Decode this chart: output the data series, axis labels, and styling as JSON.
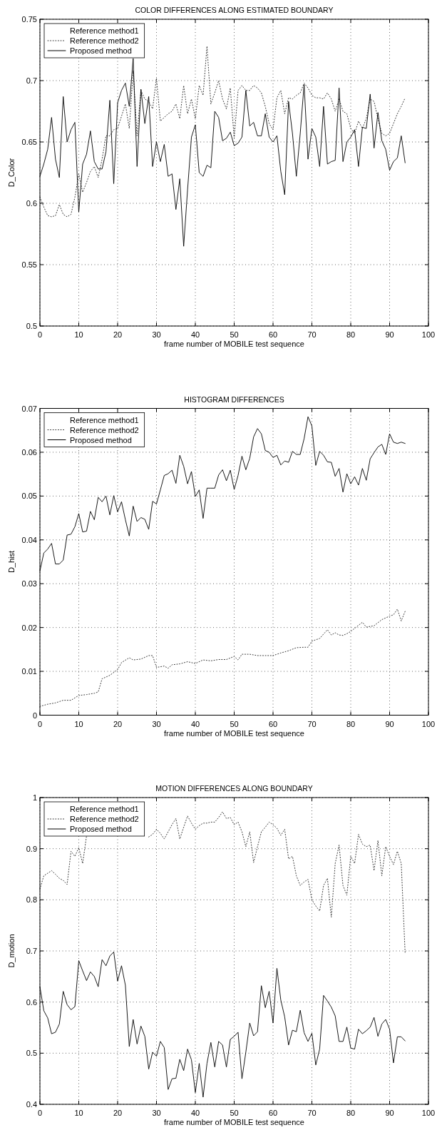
{
  "chart_data": [
    {
      "type": "line",
      "title": "COLOR DIFFERENCES ALONG ESTIMATED BOUNDARY",
      "xlabel": "frame number of MOBILE test sequence",
      "ylabel": "D_Color",
      "xlim": [
        0,
        100
      ],
      "xticks": [
        0,
        10,
        20,
        30,
        40,
        50,
        60,
        70,
        80,
        90,
        100
      ],
      "ylim": [
        0.5,
        0.75
      ],
      "yticks": [
        0.5,
        0.55,
        0.6,
        0.65,
        0.7,
        0.75
      ],
      "grid": true,
      "legend": "top left",
      "series": [
        {
          "name": "Reference method1"
        },
        {
          "name": "Reference method2",
          "color": "#333333",
          "line_style": "dotted",
          "x": [
            0,
            1,
            2,
            3,
            4,
            5,
            6,
            7,
            8,
            9,
            10,
            11,
            12,
            13,
            14,
            15,
            16,
            17,
            18,
            19,
            20,
            21,
            22,
            23,
            24,
            25,
            26,
            27,
            28,
            29,
            30,
            31,
            32,
            33,
            34,
            35,
            36,
            37,
            38,
            39,
            40,
            41,
            42,
            43,
            44,
            45,
            46,
            47,
            48,
            49,
            50,
            51,
            52,
            53,
            54,
            55,
            56,
            57,
            58,
            59,
            60,
            61,
            62,
            63,
            64,
            65,
            66,
            67,
            68,
            69,
            70,
            71,
            72,
            73,
            74,
            75,
            76,
            77,
            78,
            79,
            80,
            81,
            82,
            83,
            84,
            85,
            86,
            87,
            88,
            89,
            90,
            91,
            92,
            93,
            94
          ],
          "values": [
            0.605,
            0.597,
            0.59,
            0.589,
            0.59,
            0.599,
            0.591,
            0.589,
            0.591,
            0.605,
            0.624,
            0.609,
            0.617,
            0.626,
            0.63,
            0.621,
            0.636,
            0.655,
            0.655,
            0.66,
            0.661,
            0.671,
            0.681,
            0.661,
            0.708,
            0.655,
            0.692,
            0.685,
            0.683,
            0.677,
            0.702,
            0.667,
            0.67,
            0.673,
            0.675,
            0.681,
            0.669,
            0.696,
            0.673,
            0.685,
            0.669,
            0.696,
            0.688,
            0.728,
            0.681,
            0.69,
            0.7,
            0.685,
            0.677,
            0.694,
            0.653,
            0.692,
            0.696,
            0.692,
            0.692,
            0.696,
            0.694,
            0.69,
            0.679,
            0.665,
            0.66,
            0.686,
            0.692,
            0.673,
            0.686,
            0.685,
            0.688,
            0.69,
            0.698,
            0.694,
            0.688,
            0.686,
            0.686,
            0.685,
            0.69,
            0.685,
            0.675,
            0.685,
            0.675,
            0.673,
            0.661,
            0.657,
            0.667,
            0.661,
            0.669,
            0.685,
            0.683,
            0.669,
            0.657,
            0.655,
            0.657,
            0.665,
            0.673,
            0.679,
            0.686
          ]
        },
        {
          "name": "Proposed method",
          "color": "#000000",
          "line_style": "solid",
          "x": [
            0,
            1,
            2,
            3,
            4,
            5,
            6,
            7,
            8,
            9,
            10,
            11,
            12,
            13,
            14,
            15,
            16,
            17,
            18,
            19,
            20,
            21,
            22,
            23,
            24,
            25,
            26,
            27,
            28,
            29,
            30,
            31,
            32,
            33,
            34,
            35,
            36,
            37,
            38,
            39,
            40,
            41,
            42,
            43,
            44,
            45,
            46,
            47,
            48,
            49,
            50,
            51,
            52,
            53,
            54,
            55,
            56,
            57,
            58,
            59,
            60,
            61,
            62,
            63,
            64,
            65,
            66,
            67,
            68,
            69,
            70,
            71,
            72,
            73,
            74,
            75,
            76,
            77,
            78,
            79,
            80,
            81,
            82,
            83,
            84,
            85,
            86,
            87,
            88,
            89,
            90,
            91,
            92,
            93,
            94
          ],
          "values": [
            0.622,
            0.632,
            0.644,
            0.67,
            0.636,
            0.621,
            0.687,
            0.65,
            0.66,
            0.666,
            0.593,
            0.632,
            0.64,
            0.659,
            0.634,
            0.628,
            0.628,
            0.642,
            0.684,
            0.616,
            0.682,
            0.692,
            0.698,
            0.679,
            0.718,
            0.63,
            0.693,
            0.665,
            0.687,
            0.63,
            0.65,
            0.634,
            0.648,
            0.622,
            0.624,
            0.595,
            0.62,
            0.565,
            0.611,
            0.654,
            0.664,
            0.625,
            0.622,
            0.631,
            0.629,
            0.675,
            0.67,
            0.651,
            0.653,
            0.658,
            0.647,
            0.649,
            0.654,
            0.692,
            0.663,
            0.666,
            0.655,
            0.655,
            0.673,
            0.654,
            0.65,
            0.655,
            0.626,
            0.607,
            0.683,
            0.657,
            0.622,
            0.657,
            0.697,
            0.636,
            0.661,
            0.654,
            0.63,
            0.679,
            0.632,
            0.634,
            0.635,
            0.694,
            0.634,
            0.65,
            0.654,
            0.66,
            0.63,
            0.662,
            0.661,
            0.689,
            0.645,
            0.674,
            0.651,
            0.644,
            0.627,
            0.634,
            0.637,
            0.655,
            0.633
          ]
        }
      ]
    },
    {
      "type": "line",
      "title": "HISTOGRAM DIFFERENCES",
      "xlabel": "frame number of MOBILE test sequence",
      "ylabel": "D_hist",
      "xlim": [
        0,
        100
      ],
      "xticks": [
        0,
        10,
        20,
        30,
        40,
        50,
        60,
        70,
        80,
        90,
        100
      ],
      "ylim": [
        0,
        0.07
      ],
      "yticks": [
        0,
        0.01,
        0.02,
        0.03,
        0.04,
        0.05,
        0.06,
        0.07
      ],
      "grid": true,
      "legend": "top left",
      "series": [
        {
          "name": "Reference method1"
        },
        {
          "name": "Reference method2",
          "color": "#333333",
          "line_style": "dotted",
          "x": [
            0,
            2,
            4,
            6,
            8,
            10,
            12,
            14,
            15,
            16,
            18,
            20,
            21,
            23,
            24,
            26,
            28,
            29,
            30,
            32,
            33,
            34,
            36,
            38,
            40,
            42,
            44,
            46,
            48,
            50,
            51,
            52,
            54,
            56,
            58,
            60,
            62,
            64,
            66,
            68,
            69,
            70,
            72,
            74,
            75,
            76,
            77,
            78,
            79,
            80,
            82,
            83,
            84,
            86,
            88,
            90,
            91,
            92,
            93,
            94
          ],
          "values": [
            0.002,
            0.0025,
            0.0028,
            0.0034,
            0.0034,
            0.0045,
            0.0047,
            0.005,
            0.0053,
            0.0083,
            0.0091,
            0.0104,
            0.012,
            0.0131,
            0.0126,
            0.0128,
            0.0136,
            0.0136,
            0.0109,
            0.0112,
            0.0107,
            0.0115,
            0.0117,
            0.0122,
            0.0118,
            0.0126,
            0.0124,
            0.0127,
            0.0127,
            0.0134,
            0.0126,
            0.0139,
            0.0139,
            0.0136,
            0.0136,
            0.0136,
            0.0142,
            0.0147,
            0.0154,
            0.0155,
            0.0155,
            0.0169,
            0.0175,
            0.0195,
            0.0183,
            0.0188,
            0.0183,
            0.0182,
            0.0186,
            0.0191,
            0.0205,
            0.0212,
            0.0201,
            0.0204,
            0.0218,
            0.0226,
            0.0229,
            0.0242,
            0.0215,
            0.0237
          ]
        },
        {
          "name": "Proposed method",
          "color": "#000000",
          "line_style": "solid",
          "x": [
            0,
            1,
            2,
            3,
            4,
            5,
            6,
            7,
            8,
            9,
            10,
            11,
            12,
            13,
            14,
            15,
            16,
            17,
            18,
            19,
            20,
            21,
            22,
            23,
            24,
            25,
            26,
            27,
            28,
            29,
            30,
            31,
            32,
            33,
            34,
            35,
            36,
            37,
            38,
            39,
            40,
            41,
            42,
            43,
            44,
            45,
            46,
            47,
            48,
            49,
            50,
            51,
            52,
            53,
            54,
            55,
            56,
            57,
            58,
            59,
            60,
            61,
            62,
            63,
            64,
            65,
            66,
            67,
            68,
            69,
            70,
            71,
            72,
            73,
            74,
            75,
            76,
            77,
            78,
            79,
            80,
            81,
            82,
            83,
            84,
            85,
            86,
            87,
            88,
            89,
            90,
            91,
            92,
            93,
            94
          ],
          "values": [
            0.0329,
            0.037,
            0.0379,
            0.0392,
            0.0345,
            0.0345,
            0.0354,
            0.0411,
            0.0413,
            0.043,
            0.046,
            0.0418,
            0.042,
            0.0465,
            0.0446,
            0.0497,
            0.0487,
            0.05,
            0.0457,
            0.0501,
            0.0464,
            0.0487,
            0.0446,
            0.0409,
            0.0477,
            0.0442,
            0.0451,
            0.0447,
            0.0424,
            0.0488,
            0.0482,
            0.0514,
            0.0547,
            0.0551,
            0.0559,
            0.0529,
            0.0593,
            0.0568,
            0.0528,
            0.0556,
            0.0499,
            0.0514,
            0.0449,
            0.0518,
            0.0518,
            0.0518,
            0.0548,
            0.056,
            0.0535,
            0.0559,
            0.0515,
            0.0547,
            0.0591,
            0.056,
            0.0586,
            0.0635,
            0.0654,
            0.0642,
            0.0604,
            0.06,
            0.0588,
            0.0593,
            0.0571,
            0.058,
            0.0577,
            0.0602,
            0.0595,
            0.0595,
            0.0631,
            0.0681,
            0.066,
            0.057,
            0.0602,
            0.0593,
            0.0578,
            0.0577,
            0.0545,
            0.0563,
            0.0509,
            0.0551,
            0.0528,
            0.0544,
            0.0525,
            0.0563,
            0.0536,
            0.0585,
            0.0599,
            0.0612,
            0.0618,
            0.0595,
            0.0642,
            0.0623,
            0.062,
            0.0623,
            0.062
          ]
        }
      ]
    },
    {
      "type": "line",
      "title": "MOTION DIFFERENCES ALONG BOUNDARY",
      "xlabel": "frame number of MOBILE test sequence",
      "ylabel": "D_motion",
      "xlim": [
        0,
        100
      ],
      "xticks": [
        0,
        10,
        20,
        30,
        40,
        50,
        60,
        70,
        80,
        90,
        100
      ],
      "ylim": [
        0.4,
        1
      ],
      "yticks": [
        0.4,
        0.5,
        0.6,
        0.7,
        0.8,
        0.9,
        1
      ],
      "grid": true,
      "legend": "top left",
      "series": [
        {
          "name": "Reference method1"
        },
        {
          "name": "Reference method2",
          "color": "#333333",
          "line_style": "dotted",
          "x": [
            0,
            1,
            2,
            3,
            4,
            5,
            6,
            7,
            8,
            9,
            10,
            11,
            12,
            13,
            14,
            15,
            16,
            17,
            18,
            19,
            20,
            21,
            22,
            23,
            24,
            25,
            26,
            27,
            28,
            29,
            30,
            31,
            32,
            33,
            34,
            35,
            36,
            37,
            38,
            39,
            40,
            41,
            42,
            43,
            44,
            45,
            46,
            47,
            48,
            49,
            50,
            51,
            52,
            53,
            54,
            55,
            56,
            57,
            58,
            59,
            60,
            61,
            62,
            63,
            64,
            65,
            66,
            67,
            68,
            69,
            70,
            71,
            72,
            73,
            74,
            75,
            76,
            77,
            78,
            79,
            80,
            81,
            82,
            83,
            84,
            85,
            86,
            87,
            88,
            89,
            90,
            91,
            92,
            93,
            94
          ],
          "values": [
            0.821,
            0.847,
            0.852,
            0.857,
            0.85,
            0.842,
            0.838,
            0.83,
            0.895,
            0.885,
            0.902,
            0.871,
            0.925,
            null,
            null,
            null,
            null,
            null,
            null,
            null,
            null,
            null,
            null,
            null,
            null,
            null,
            null,
            null,
            0.923,
            0.928,
            0.938,
            0.93,
            0.919,
            0.933,
            0.947,
            0.959,
            0.919,
            0.942,
            0.964,
            0.95,
            0.938,
            0.945,
            0.95,
            0.95,
            0.952,
            0.952,
            0.961,
            0.972,
            0.959,
            0.961,
            0.947,
            0.952,
            0.933,
            0.904,
            0.933,
            0.873,
            0.904,
            0.933,
            0.942,
            0.952,
            0.947,
            0.94,
            0.926,
            0.938,
            0.88,
            0.885,
            0.847,
            0.828,
            0.835,
            0.84,
            0.8,
            0.788,
            0.778,
            0.828,
            0.842,
            0.766,
            0.871,
            0.907,
            0.828,
            0.809,
            0.885,
            0.871,
            0.928,
            0.909,
            0.904,
            0.907,
            0.857,
            0.916,
            0.847,
            0.904,
            0.885,
            0.869,
            0.895,
            0.871,
            0.695
          ]
        },
        {
          "name": "Proposed method",
          "color": "#000000",
          "line_style": "solid",
          "x": [
            0,
            1,
            2,
            3,
            4,
            5,
            6,
            7,
            8,
            9,
            10,
            11,
            12,
            13,
            14,
            15,
            16,
            17,
            18,
            19,
            20,
            21,
            22,
            23,
            24,
            25,
            26,
            27,
            28,
            29,
            30,
            31,
            32,
            33,
            34,
            35,
            36,
            37,
            38,
            39,
            40,
            41,
            42,
            43,
            44,
            45,
            46,
            47,
            48,
            49,
            50,
            51,
            52,
            53,
            54,
            55,
            56,
            57,
            58,
            59,
            60,
            61,
            62,
            63,
            64,
            65,
            66,
            67,
            68,
            69,
            70,
            71,
            72,
            73,
            74,
            75,
            76,
            77,
            78,
            79,
            80,
            81,
            82,
            83,
            84,
            85,
            86,
            87,
            88,
            89,
            90,
            91,
            92,
            93,
            94
          ],
          "values": [
            0.63,
            0.583,
            0.569,
            0.538,
            0.541,
            0.557,
            0.621,
            0.595,
            0.585,
            0.591,
            0.681,
            0.661,
            0.642,
            0.659,
            0.65,
            0.63,
            0.683,
            0.671,
            0.69,
            0.698,
            0.641,
            0.671,
            0.633,
            0.513,
            0.566,
            0.518,
            0.553,
            0.533,
            0.469,
            0.502,
            0.494,
            0.523,
            0.511,
            0.429,
            0.45,
            0.451,
            0.488,
            0.466,
            0.508,
            0.487,
            0.423,
            0.48,
            0.414,
            0.48,
            0.521,
            0.473,
            0.523,
            0.516,
            0.473,
            0.527,
            0.533,
            0.541,
            0.45,
            0.502,
            0.559,
            0.534,
            0.542,
            0.632,
            0.589,
            0.621,
            0.559,
            0.666,
            0.604,
            0.571,
            0.516,
            0.545,
            0.542,
            0.584,
            0.54,
            0.523,
            0.539,
            0.477,
            0.508,
            0.613,
            0.602,
            0.59,
            0.573,
            0.523,
            0.523,
            0.551,
            0.51,
            0.508,
            0.547,
            0.538,
            0.544,
            0.551,
            0.57,
            0.533,
            0.557,
            0.566,
            0.547,
            0.481,
            0.532,
            0.532,
            0.524
          ]
        }
      ]
    }
  ]
}
